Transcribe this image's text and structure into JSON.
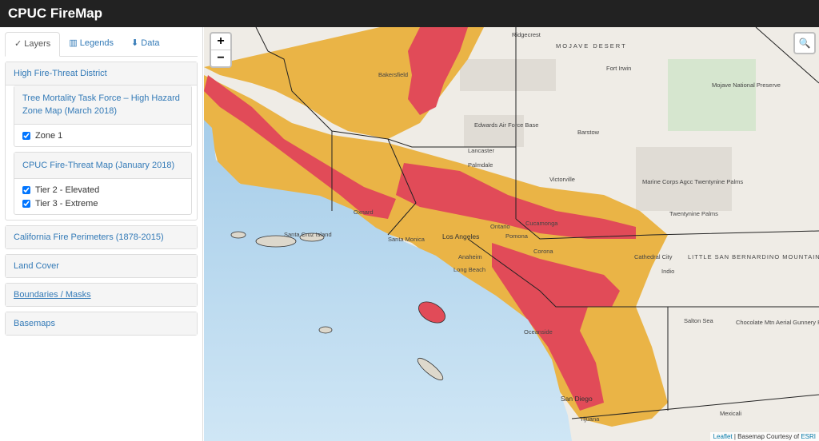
{
  "header": {
    "title": "CPUC FireMap"
  },
  "sidebar": {
    "tabs": [
      {
        "icon": "✓",
        "label": "Layers"
      },
      {
        "icon": "▥",
        "label": "Legends"
      },
      {
        "icon": "⬇",
        "label": "Data"
      }
    ],
    "panels": [
      {
        "title": "High Fire-Threat District",
        "subpanels": [
          {
            "title": "Tree Mortality Task Force – High Hazard Zone Map (March 2018)",
            "items": [
              "Zone 1"
            ]
          },
          {
            "title": "CPUC Fire-Threat Map (January 2018)",
            "items": [
              "Tier 2 - Elevated",
              "Tier 3 - Extreme"
            ]
          }
        ]
      },
      {
        "title": "California Fire Perimeters (1878-2015)"
      },
      {
        "title": "Land Cover"
      },
      {
        "title": "Boundaries / Masks"
      },
      {
        "title": "Basemaps"
      }
    ]
  },
  "map": {
    "zoom_in": "+",
    "zoom_out": "−",
    "search": "🔍",
    "labels": [
      "Ridgecrest",
      "MOJAVE DESERT",
      "Bakersfield",
      "Fort Irwin",
      "Mojave National Preserve",
      "Edwards Air Force Base",
      "Barstow",
      "Lancaster",
      "Palmdale",
      "Victorville",
      "Marine Corps Agcc Twentynine Palms",
      "Twentynine Palms",
      "Oxnard",
      "Santa Monica",
      "Los Angeles",
      "Ontario",
      "Cucamonga",
      "Pomona",
      "Anaheim",
      "Long Beach",
      "Corona",
      "Cathedral City",
      "Indio",
      "LITTLE SAN BERNARDINO MOUNTAINS",
      "Salton Sea",
      "Chocolate Mtn Aerial Gunnery Range",
      "Oceanside",
      "San Diego",
      "Tijuana",
      "Mexicali",
      "Santa Cruz Island"
    ],
    "attribution": {
      "leaflet": "Leaflet",
      "text": "| Basemap Courtesy of",
      "esri": "ESRI"
    }
  }
}
